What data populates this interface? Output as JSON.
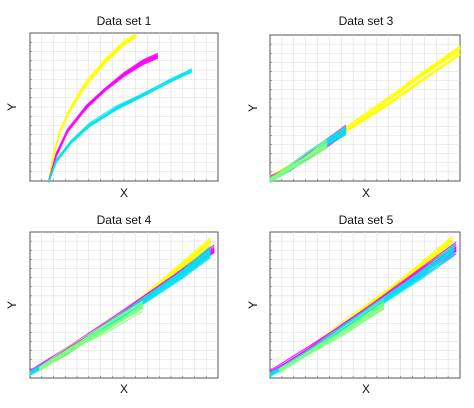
{
  "chart_data": [
    {
      "type": "line",
      "title": "Data set 1",
      "xlabel": "X",
      "ylabel": "Y",
      "grid": true,
      "tick_labels": false,
      "xlim": [
        0,
        1
      ],
      "ylim": [
        0,
        1
      ],
      "series": [
        {
          "color": "#ffff00",
          "values_x": [
            0.1,
            0.12,
            0.16,
            0.22,
            0.3,
            0.4,
            0.5,
            0.56
          ],
          "values_y": [
            0.0,
            0.15,
            0.34,
            0.5,
            0.66,
            0.81,
            0.93,
            0.98
          ]
        },
        {
          "color": "#ff00ff",
          "values_x": [
            0.1,
            0.14,
            0.2,
            0.3,
            0.4,
            0.5,
            0.6,
            0.68
          ],
          "values_y": [
            0.0,
            0.18,
            0.34,
            0.5,
            0.62,
            0.72,
            0.8,
            0.84
          ]
        },
        {
          "color": "#00e5ee",
          "values_x": [
            0.1,
            0.14,
            0.22,
            0.32,
            0.46,
            0.6,
            0.74,
            0.86
          ],
          "values_y": [
            0.0,
            0.14,
            0.27,
            0.38,
            0.49,
            0.58,
            0.67,
            0.74
          ]
        }
      ]
    },
    {
      "type": "line",
      "title": "Data set 3",
      "xlabel": "X",
      "ylabel": "Y",
      "grid": true,
      "tick_labels": false,
      "xlim": [
        0,
        1
      ],
      "ylim": [
        0,
        1
      ],
      "series": [
        {
          "color": "#ffff00",
          "values_x": [
            0.0,
            0.2,
            0.4,
            0.6,
            0.8,
            1.0
          ],
          "values_y": [
            0.02,
            0.17,
            0.35,
            0.53,
            0.72,
            0.9
          ]
        },
        {
          "color": "#ff00ff",
          "values_x": [
            0.0,
            0.1,
            0.2,
            0.3,
            0.4
          ],
          "values_y": [
            0.01,
            0.08,
            0.17,
            0.26,
            0.35
          ]
        },
        {
          "color": "#00e5ee",
          "values_x": [
            0.0,
            0.1,
            0.2,
            0.3,
            0.4
          ],
          "values_y": [
            0.01,
            0.09,
            0.18,
            0.27,
            0.35
          ]
        },
        {
          "color": "#80ff80",
          "values_x": [
            0.0,
            0.1,
            0.2,
            0.3
          ],
          "values_y": [
            0.0,
            0.08,
            0.16,
            0.25
          ]
        }
      ]
    },
    {
      "type": "line",
      "title": "Data set 4",
      "xlabel": "X",
      "ylabel": "Y",
      "grid": true,
      "tick_labels": false,
      "xlim": [
        0,
        1
      ],
      "ylim": [
        0,
        1
      ],
      "series": [
        {
          "color": "#ffff00",
          "values_x": [
            0.0,
            0.2,
            0.4,
            0.6,
            0.8,
            0.96
          ],
          "values_y": [
            0.03,
            0.18,
            0.36,
            0.55,
            0.76,
            0.93
          ]
        },
        {
          "color": "#ff00ff",
          "values_x": [
            0.0,
            0.2,
            0.4,
            0.6,
            0.8,
            0.98
          ],
          "values_y": [
            0.04,
            0.19,
            0.36,
            0.54,
            0.72,
            0.88
          ]
        },
        {
          "color": "#00e5ee",
          "values_x": [
            0.0,
            0.2,
            0.4,
            0.6,
            0.8,
            0.96
          ],
          "values_y": [
            0.03,
            0.18,
            0.35,
            0.52,
            0.7,
            0.86
          ]
        },
        {
          "color": "#80ff80",
          "values_x": [
            0.05,
            0.2,
            0.4,
            0.6
          ],
          "values_y": [
            0.06,
            0.19,
            0.34,
            0.5
          ]
        }
      ]
    },
    {
      "type": "line",
      "title": "Data set 5",
      "xlabel": "X",
      "ylabel": "Y",
      "grid": true,
      "tick_labels": false,
      "xlim": [
        0,
        1
      ],
      "ylim": [
        0,
        1
      ],
      "series": [
        {
          "color": "#ffff00",
          "values_x": [
            0.0,
            0.2,
            0.4,
            0.6,
            0.8,
            0.96
          ],
          "values_y": [
            0.02,
            0.18,
            0.38,
            0.57,
            0.77,
            0.94
          ]
        },
        {
          "color": "#ff00ff",
          "values_x": [
            0.0,
            0.2,
            0.4,
            0.6,
            0.8,
            0.98
          ],
          "values_y": [
            0.03,
            0.19,
            0.37,
            0.55,
            0.74,
            0.9
          ]
        },
        {
          "color": "#00e5ee",
          "values_x": [
            0.0,
            0.2,
            0.4,
            0.6,
            0.8,
            0.97
          ],
          "values_y": [
            0.02,
            0.17,
            0.35,
            0.53,
            0.71,
            0.88
          ]
        },
        {
          "color": "#80ff80",
          "values_x": [
            0.05,
            0.2,
            0.4,
            0.6
          ],
          "values_y": [
            0.05,
            0.17,
            0.33,
            0.5
          ]
        }
      ]
    }
  ]
}
